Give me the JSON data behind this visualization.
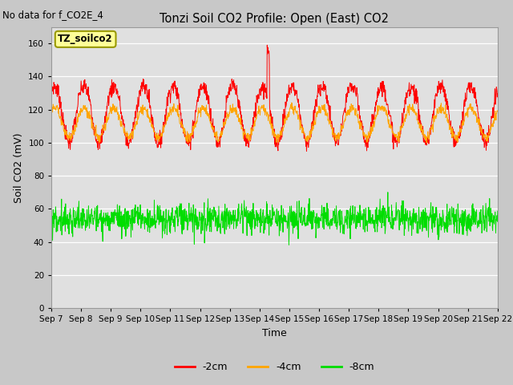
{
  "title": "Tonzi Soil CO2 Profile: Open (East) CO2",
  "subtitle": "No data for f_CO2E_4",
  "ylabel": "Soil CO2 (mV)",
  "xlabel": "Time",
  "legend_label": "TZ_soilco2",
  "ylim": [
    0,
    170
  ],
  "yticks": [
    0,
    20,
    40,
    60,
    80,
    100,
    120,
    140,
    160
  ],
  "line_colors": {
    "neg2cm": "#FF0000",
    "neg4cm": "#FFA500",
    "neg8cm": "#00DD00"
  },
  "legend_entries": [
    "-2cm",
    "-4cm",
    "-8cm"
  ],
  "background_color": "#C8C8C8",
  "plot_bg_color": "#E0E0E0",
  "n_days": 15,
  "samples_per_day": 96,
  "seed": 7,
  "neg2cm_base": 117,
  "neg2cm_amp": 17,
  "neg2cm_noise": 2.5,
  "neg4cm_base": 112,
  "neg4cm_amp": 9,
  "neg4cm_noise": 1.5,
  "neg8cm_base": 54,
  "neg8cm_noise": 4.5,
  "spike_day": 7,
  "spike_val": 30
}
